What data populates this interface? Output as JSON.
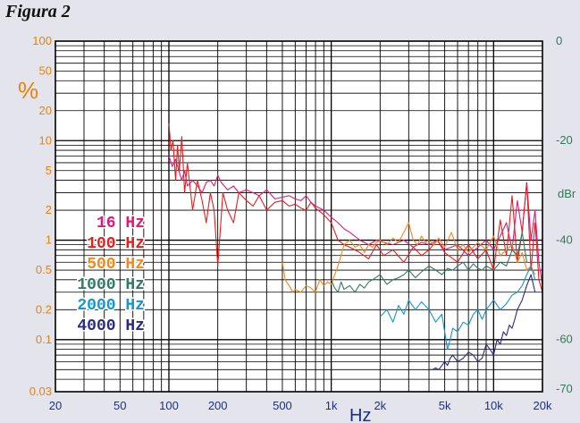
{
  "figure_title": "Figura 2",
  "chart_data": {
    "type": "line",
    "title": "Figura 2",
    "xlabel": "Hz",
    "ylabel": "%",
    "y2label": "dBr",
    "x_scale": "log",
    "y_scale": "log",
    "xlim": [
      20,
      20000
    ],
    "ylim": [
      0.03,
      100
    ],
    "y2lim": [
      -70.5,
      0
    ],
    "grid": true,
    "legend_position": "left",
    "x_ticks": [
      {
        "value": 20,
        "label": "20"
      },
      {
        "value": 50,
        "label": "50"
      },
      {
        "value": 100,
        "label": "100"
      },
      {
        "value": 200,
        "label": "200"
      },
      {
        "value": 500,
        "label": "500"
      },
      {
        "value": 1000,
        "label": "1k"
      },
      {
        "value": 2000,
        "label": "2k"
      },
      {
        "value": 5000,
        "label": "5k"
      },
      {
        "value": 10000,
        "label": "10k"
      },
      {
        "value": 20000,
        "label": "20k"
      }
    ],
    "y_ticks": [
      {
        "value": 100,
        "label": "100"
      },
      {
        "value": 50,
        "label": "50"
      },
      {
        "value": 20,
        "label": "20"
      },
      {
        "value": 10,
        "label": "10"
      },
      {
        "value": 5,
        "label": "5"
      },
      {
        "value": 2,
        "label": "2"
      },
      {
        "value": 1,
        "label": "1"
      },
      {
        "value": 0.5,
        "label": "0.5"
      },
      {
        "value": 0.2,
        "label": "0.2"
      },
      {
        "value": 0.1,
        "label": "0.1"
      },
      {
        "value": 0.03,
        "label": "0.03"
      }
    ],
    "y2_ticks": [
      {
        "value": 0,
        "label": "0"
      },
      {
        "value": -20,
        "label": "-20"
      },
      {
        "value": -40,
        "label": "-40"
      },
      {
        "value": -60,
        "label": "-60"
      },
      {
        "value": -70,
        "label": "-70"
      }
    ],
    "series": [
      {
        "name": "16 Hz",
        "color": "#e0187a",
        "x": [
          100,
          105,
          110,
          115,
          120,
          125,
          130,
          140,
          150,
          160,
          170,
          180,
          190,
          200,
          210,
          230,
          250,
          270,
          300,
          330,
          360,
          400,
          450,
          500,
          550,
          600,
          650,
          700,
          750,
          800,
          900,
          1000,
          1100,
          1200,
          1300,
          1500,
          1700,
          1900,
          2100,
          2400,
          2800,
          3200,
          3600,
          4000,
          4500,
          5000,
          6000,
          7000,
          8000,
          9000,
          10000,
          11000,
          12000,
          13000,
          14000,
          15000,
          16000,
          17000,
          18000,
          19000,
          20000
        ],
        "y": [
          7.0,
          5.5,
          6.5,
          5.0,
          4.0,
          5.0,
          3.5,
          4.0,
          3.5,
          3.0,
          3.8,
          4.0,
          3.5,
          4.5,
          3.8,
          3.2,
          3.5,
          3.0,
          3.2,
          3.0,
          2.8,
          3.2,
          2.6,
          2.7,
          2.8,
          2.6,
          2.5,
          2.8,
          2.4,
          2.2,
          2.0,
          1.7,
          1.5,
          1.3,
          1.2,
          1.0,
          0.9,
          1.0,
          0.95,
          0.9,
          1.0,
          0.85,
          0.95,
          0.9,
          1.0,
          0.8,
          0.9,
          0.7,
          0.85,
          1.0,
          0.8,
          1.1,
          1.5,
          0.8,
          2.5,
          1.2,
          3.8,
          1.0,
          2.0,
          0.6,
          0.35
        ]
      },
      {
        "name": "100 Hz",
        "color": "#e61e1e",
        "x": [
          100,
          103,
          106,
          110,
          113,
          116,
          120,
          125,
          130,
          140,
          150,
          160,
          170,
          180,
          190,
          200,
          215,
          230,
          250,
          270,
          300,
          330,
          360,
          400,
          450,
          500,
          550,
          600,
          650,
          700,
          750,
          800,
          900,
          1000,
          1100,
          1200,
          1300,
          1500,
          1700,
          1900,
          2100,
          2400,
          2800,
          3200,
          3600,
          4000,
          4500,
          5000,
          6000,
          7000,
          8000,
          9000,
          10000,
          11000,
          12000,
          13000,
          14000,
          15000,
          16000,
          17000,
          18000,
          19000,
          20000
        ],
        "y": [
          15.0,
          8.0,
          10.0,
          4.0,
          9.0,
          5.0,
          11.0,
          3.0,
          6.0,
          2.0,
          4.0,
          2.5,
          1.5,
          3.0,
          2.0,
          0.55,
          3.0,
          2.0,
          1.5,
          3.0,
          2.5,
          2.2,
          2.8,
          2.0,
          2.4,
          2.5,
          2.2,
          2.3,
          2.1,
          2.0,
          2.4,
          2.1,
          1.8,
          1.5,
          1.0,
          0.9,
          0.85,
          0.75,
          0.65,
          0.9,
          0.7,
          0.8,
          0.6,
          0.85,
          0.7,
          0.8,
          1.0,
          0.75,
          0.6,
          0.9,
          0.65,
          0.8,
          0.5,
          1.6,
          0.7,
          2.8,
          0.6,
          1.2,
          3.8,
          0.5,
          1.5,
          0.4,
          0.3
        ]
      },
      {
        "name": "500 Hz",
        "color": "#f08a1c",
        "x": [
          500,
          520,
          550,
          580,
          600,
          650,
          700,
          750,
          800,
          850,
          900,
          950,
          1000,
          1100,
          1200,
          1300,
          1400,
          1500,
          1600,
          1700,
          1800,
          1900,
          2000,
          2200,
          2400,
          2600,
          2800,
          3000,
          3200,
          3400,
          3600,
          3800,
          4000,
          4300,
          4600,
          5000,
          5500,
          6000,
          6500,
          7000,
          8000,
          9000,
          10000,
          11000,
          12000,
          13000,
          14000,
          15000,
          16000,
          17000,
          18000
        ],
        "y": [
          0.6,
          0.4,
          0.35,
          0.3,
          0.32,
          0.3,
          0.35,
          0.33,
          0.3,
          0.4,
          0.35,
          0.38,
          0.36,
          0.55,
          0.9,
          1.0,
          0.85,
          0.9,
          0.75,
          0.9,
          0.85,
          0.95,
          1.0,
          0.9,
          1.05,
          0.95,
          1.2,
          1.5,
          1.0,
          0.9,
          1.1,
          0.95,
          1.0,
          0.9,
          1.05,
          0.85,
          1.2,
          0.8,
          0.9,
          0.75,
          0.95,
          0.8,
          1.1,
          0.7,
          0.8,
          0.9,
          0.6,
          0.75,
          0.5,
          0.55,
          0.45
        ]
      },
      {
        "name": "1000 Hz",
        "color": "#2f7a64",
        "x": [
          1000,
          1050,
          1100,
          1150,
          1200,
          1300,
          1400,
          1500,
          1600,
          1700,
          1800,
          2000,
          2200,
          2400,
          2600,
          2800,
          3000,
          3300,
          3600,
          4000,
          4400,
          4800,
          5200,
          5600,
          6000,
          6500,
          7000,
          7500,
          8000,
          8500,
          9000,
          10000,
          11000,
          12000,
          13000,
          14000,
          15000,
          16000
        ],
        "y": [
          0.4,
          0.33,
          0.3,
          0.38,
          0.32,
          0.35,
          0.3,
          0.36,
          0.33,
          0.38,
          0.4,
          0.45,
          0.36,
          0.4,
          0.42,
          0.45,
          0.5,
          0.42,
          0.48,
          0.55,
          0.5,
          0.45,
          0.52,
          0.5,
          0.55,
          0.6,
          0.5,
          0.58,
          0.52,
          0.5,
          0.55,
          0.5,
          0.6,
          0.55,
          0.8,
          0.7,
          1.2,
          0.6
        ]
      },
      {
        "name": "2000 Hz",
        "color": "#1596cc",
        "x": [
          2000,
          2200,
          2400,
          2600,
          2800,
          3000,
          3300,
          3600,
          4000,
          4400,
          4800,
          5000,
          5200,
          5400,
          5600,
          6000,
          6500,
          7000,
          7500,
          8000,
          8500,
          9000,
          10000,
          11000,
          12000,
          13000,
          14000,
          15000,
          16000,
          17000,
          18000
        ],
        "y": [
          0.17,
          0.2,
          0.15,
          0.22,
          0.18,
          0.25,
          0.2,
          0.24,
          0.2,
          0.15,
          0.18,
          0.12,
          0.08,
          0.1,
          0.13,
          0.12,
          0.15,
          0.14,
          0.18,
          0.2,
          0.16,
          0.2,
          0.25,
          0.2,
          0.23,
          0.28,
          0.3,
          0.35,
          0.45,
          0.55,
          0.4
        ]
      },
      {
        "name": "4000 Hz",
        "color": "#2a2a88",
        "x": [
          4000,
          4200,
          4400,
          4600,
          4800,
          5000,
          5200,
          5400,
          5600,
          6000,
          6500,
          7000,
          7500,
          8000,
          8500,
          9000,
          9500,
          10000,
          10500,
          11000,
          11500,
          12000,
          12500,
          13000,
          13500,
          14000,
          15000,
          16000,
          17000,
          18000
        ],
        "y": [
          0.05,
          0.05,
          0.052,
          0.05,
          0.055,
          0.06,
          0.055,
          0.065,
          0.07,
          0.06,
          0.065,
          0.075,
          0.07,
          0.06,
          0.065,
          0.09,
          0.08,
          0.07,
          0.1,
          0.09,
          0.12,
          0.11,
          0.14,
          0.13,
          0.16,
          0.2,
          0.25,
          0.35,
          0.45,
          0.3
        ]
      }
    ]
  }
}
